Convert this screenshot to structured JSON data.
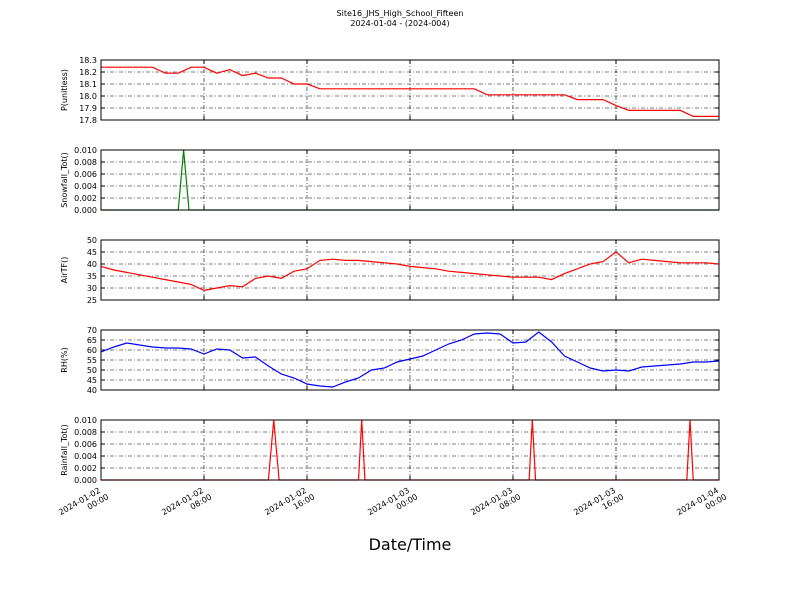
{
  "title": "Site16_JHS_High_School_Fifteen",
  "subtitle": "2024-01-04 - (2024-004)",
  "xlabel": "Date/Time",
  "chart_data": [
    {
      "type": "line",
      "ylabel": "P(unitless)",
      "color": "#ff0000",
      "grid": true,
      "xlim": [
        "2024-01-02 00:00",
        "2024-01-04 00:00"
      ],
      "xticks": [
        "2024-01-02 00:00",
        "2024-01-02 08:00",
        "2024-01-02 16:00",
        "2024-01-03 00:00",
        "2024-01-03 08:00",
        "2024-01-03 16:00",
        "2024-01-04 00:00"
      ],
      "ylim": [
        17.8,
        18.3
      ],
      "yticks": [
        17.8,
        17.9,
        {
          "value": 18,
          "label": "18.0"
        },
        18.1,
        18.2,
        18.3
      ],
      "x": [
        "2024-01-02 00:00",
        "2024-01-02 01:00",
        "2024-01-02 02:00",
        "2024-01-02 03:00",
        "2024-01-02 04:00",
        "2024-01-02 05:00",
        "2024-01-02 06:00",
        "2024-01-02 07:00",
        "2024-01-02 08:00",
        "2024-01-02 09:00",
        "2024-01-02 10:00",
        "2024-01-02 11:00",
        "2024-01-02 12:00",
        "2024-01-02 13:00",
        "2024-01-02 14:00",
        "2024-01-02 15:00",
        "2024-01-02 16:00",
        "2024-01-02 17:00",
        "2024-01-02 18:00",
        "2024-01-02 19:00",
        "2024-01-02 20:00",
        "2024-01-02 21:00",
        "2024-01-02 22:00",
        "2024-01-02 23:00",
        "2024-01-03 00:00",
        "2024-01-03 01:00",
        "2024-01-03 02:00",
        "2024-01-03 03:00",
        "2024-01-03 04:00",
        "2024-01-03 05:00",
        "2024-01-03 06:00",
        "2024-01-03 07:00",
        "2024-01-03 08:00",
        "2024-01-03 09:00",
        "2024-01-03 10:00",
        "2024-01-03 11:00",
        "2024-01-03 12:00",
        "2024-01-03 13:00",
        "2024-01-03 14:00",
        "2024-01-03 15:00",
        "2024-01-03 16:00",
        "2024-01-03 17:00",
        "2024-01-03 18:00",
        "2024-01-03 19:00",
        "2024-01-03 20:00",
        "2024-01-03 21:00",
        "2024-01-03 22:00",
        "2024-01-03 23:00",
        "2024-01-04 00:00"
      ],
      "values": [
        18.24,
        18.24,
        18.24,
        18.24,
        18.24,
        18.19,
        18.19,
        18.24,
        18.24,
        18.19,
        18.22,
        18.17,
        18.19,
        18.15,
        18.15,
        18.1,
        18.1,
        18.06,
        18.06,
        18.06,
        18.06,
        18.06,
        18.06,
        18.06,
        18.06,
        18.06,
        18.06,
        18.06,
        18.06,
        18.06,
        18.01,
        18.01,
        18.01,
        18.01,
        18.01,
        18.01,
        18.01,
        17.97,
        17.97,
        17.97,
        17.92,
        17.88,
        17.88,
        17.88,
        17.88,
        17.88,
        17.83,
        17.83,
        17.83
      ]
    },
    {
      "type": "line",
      "ylabel": "Snowfall_Tot()",
      "color": "#008000",
      "grid": true,
      "xlim": [
        "2024-01-02 00:00",
        "2024-01-04 00:00"
      ],
      "xticks": [
        "2024-01-02 00:00",
        "2024-01-02 08:00",
        "2024-01-02 16:00",
        "2024-01-03 00:00",
        "2024-01-03 08:00",
        "2024-01-03 16:00",
        "2024-01-04 00:00"
      ],
      "ylim": [
        0,
        0.01
      ],
      "yticks": [
        {
          "value": 0,
          "label": "0.000"
        },
        {
          "value": 0.002,
          "label": "0.002"
        },
        {
          "value": 0.004,
          "label": "0.004"
        },
        {
          "value": 0.006,
          "label": "0.006"
        },
        {
          "value": 0.008,
          "label": "0.008"
        },
        {
          "value": 0.01,
          "label": "0.010"
        }
      ],
      "x": [
        "2024-01-02 00:00",
        "2024-01-02 06:00",
        "2024-01-02 06:25",
        "2024-01-02 06:50",
        "2024-01-04 00:00"
      ],
      "values": [
        0,
        0,
        0.01,
        0,
        0
      ]
    },
    {
      "type": "line",
      "ylabel": "AirTF()",
      "color": "#ff0000",
      "grid": true,
      "xlim": [
        "2024-01-02 00:00",
        "2024-01-04 00:00"
      ],
      "xticks": [
        "2024-01-02 00:00",
        "2024-01-02 08:00",
        "2024-01-02 16:00",
        "2024-01-03 00:00",
        "2024-01-03 08:00",
        "2024-01-03 16:00",
        "2024-01-04 00:00"
      ],
      "ylim": [
        25,
        50
      ],
      "yticks": [
        25,
        30,
        35,
        40,
        45,
        50
      ],
      "x": [
        "2024-01-02 00:00",
        "2024-01-02 01:00",
        "2024-01-02 02:00",
        "2024-01-02 03:00",
        "2024-01-02 04:00",
        "2024-01-02 05:00",
        "2024-01-02 06:00",
        "2024-01-02 07:00",
        "2024-01-02 08:00",
        "2024-01-02 09:00",
        "2024-01-02 10:00",
        "2024-01-02 11:00",
        "2024-01-02 12:00",
        "2024-01-02 13:00",
        "2024-01-02 14:00",
        "2024-01-02 15:00",
        "2024-01-02 16:00",
        "2024-01-02 17:00",
        "2024-01-02 18:00",
        "2024-01-02 19:00",
        "2024-01-02 20:00",
        "2024-01-02 21:00",
        "2024-01-02 22:00",
        "2024-01-02 23:00",
        "2024-01-03 00:00",
        "2024-01-03 01:00",
        "2024-01-03 02:00",
        "2024-01-03 03:00",
        "2024-01-03 04:00",
        "2024-01-03 05:00",
        "2024-01-03 06:00",
        "2024-01-03 07:00",
        "2024-01-03 08:00",
        "2024-01-03 09:00",
        "2024-01-03 10:00",
        "2024-01-03 11:00",
        "2024-01-03 12:00",
        "2024-01-03 13:00",
        "2024-01-03 14:00",
        "2024-01-03 15:00",
        "2024-01-03 16:00",
        "2024-01-03 17:00",
        "2024-01-03 18:00",
        "2024-01-03 19:00",
        "2024-01-03 20:00",
        "2024-01-03 21:00",
        "2024-01-03 22:00",
        "2024-01-03 23:00",
        "2024-01-04 00:00"
      ],
      "values": [
        39,
        37.5,
        36.5,
        35.5,
        34.5,
        33.5,
        32.5,
        31.5,
        29,
        30,
        31,
        30.5,
        34,
        35,
        34,
        37,
        38,
        41.5,
        42,
        41.5,
        41.5,
        41,
        40.5,
        40,
        39,
        38.5,
        38,
        37,
        36.5,
        36,
        35.5,
        35,
        34.5,
        34.5,
        34.5,
        33.5,
        36,
        38,
        40,
        41,
        45,
        40.5,
        42,
        41.5,
        41,
        40.5,
        40.5,
        40.5,
        40
      ]
    },
    {
      "type": "line",
      "ylabel": "RH(%)",
      "color": "#0000ff",
      "grid": true,
      "xlim": [
        "2024-01-02 00:00",
        "2024-01-04 00:00"
      ],
      "xticks": [
        "2024-01-02 00:00",
        "2024-01-02 08:00",
        "2024-01-02 16:00",
        "2024-01-03 00:00",
        "2024-01-03 08:00",
        "2024-01-03 16:00",
        "2024-01-04 00:00"
      ],
      "ylim": [
        40,
        70
      ],
      "yticks": [
        40,
        45,
        50,
        55,
        60,
        65,
        70
      ],
      "x": [
        "2024-01-02 00:00",
        "2024-01-02 01:00",
        "2024-01-02 02:00",
        "2024-01-02 03:00",
        "2024-01-02 04:00",
        "2024-01-02 05:00",
        "2024-01-02 06:00",
        "2024-01-02 07:00",
        "2024-01-02 08:00",
        "2024-01-02 09:00",
        "2024-01-02 10:00",
        "2024-01-02 11:00",
        "2024-01-02 12:00",
        "2024-01-02 13:00",
        "2024-01-02 14:00",
        "2024-01-02 15:00",
        "2024-01-02 16:00",
        "2024-01-02 17:00",
        "2024-01-02 18:00",
        "2024-01-02 19:00",
        "2024-01-02 20:00",
        "2024-01-02 21:00",
        "2024-01-02 22:00",
        "2024-01-02 23:00",
        "2024-01-03 00:00",
        "2024-01-03 01:00",
        "2024-01-03 02:00",
        "2024-01-03 03:00",
        "2024-01-03 04:00",
        "2024-01-03 05:00",
        "2024-01-03 06:00",
        "2024-01-03 07:00",
        "2024-01-03 08:00",
        "2024-01-03 09:00",
        "2024-01-03 10:00",
        "2024-01-03 11:00",
        "2024-01-03 12:00",
        "2024-01-03 13:00",
        "2024-01-03 14:00",
        "2024-01-03 15:00",
        "2024-01-03 16:00",
        "2024-01-03 17:00",
        "2024-01-03 18:00",
        "2024-01-03 19:00",
        "2024-01-03 20:00",
        "2024-01-03 21:00",
        "2024-01-03 22:00",
        "2024-01-03 23:00",
        "2024-01-04 00:00"
      ],
      "values": [
        59,
        61.5,
        63.5,
        62.5,
        61.5,
        61,
        61,
        60.5,
        58,
        60.5,
        60,
        56,
        56.5,
        52,
        48,
        46,
        43,
        42,
        41.5,
        44,
        46,
        50,
        51,
        54,
        55.5,
        57,
        60,
        63,
        65,
        68,
        68.5,
        68,
        63.5,
        64,
        69,
        64,
        57,
        54,
        51,
        49.5,
        50,
        49.5,
        51.5,
        52,
        52.5,
        53,
        54,
        54,
        54.5
      ]
    },
    {
      "type": "line",
      "ylabel": "Rainfall_Tot()",
      "color": "#ff0000",
      "grid": true,
      "xlim": [
        "2024-01-02 00:00",
        "2024-01-04 00:00"
      ],
      "xticks": [
        "2024-01-02 00:00",
        "2024-01-02 08:00",
        "2024-01-02 16:00",
        "2024-01-03 00:00",
        "2024-01-03 08:00",
        "2024-01-03 16:00",
        "2024-01-04 00:00"
      ],
      "ylim": [
        0,
        0.01
      ],
      "yticks": [
        {
          "value": 0,
          "label": "0.000"
        },
        {
          "value": 0.002,
          "label": "0.002"
        },
        {
          "value": 0.004,
          "label": "0.004"
        },
        {
          "value": 0.006,
          "label": "0.006"
        },
        {
          "value": 0.008,
          "label": "0.008"
        },
        {
          "value": 0.01,
          "label": "0.010"
        }
      ],
      "x": [
        "2024-01-02 00:00",
        "2024-01-02 13:00",
        "2024-01-02 13:25",
        "2024-01-02 13:50",
        "2024-01-02 20:00",
        "2024-01-02 20:15",
        "2024-01-02 20:30",
        "2024-01-03 09:15",
        "2024-01-03 09:30",
        "2024-01-03 09:45",
        "2024-01-03 21:30",
        "2024-01-03 21:45",
        "2024-01-03 22:00",
        "2024-01-04 00:00"
      ],
      "values": [
        0,
        0,
        0.01,
        0,
        0,
        0.01,
        0,
        0,
        0.01,
        0,
        0,
        0.01,
        0,
        0
      ]
    }
  ]
}
